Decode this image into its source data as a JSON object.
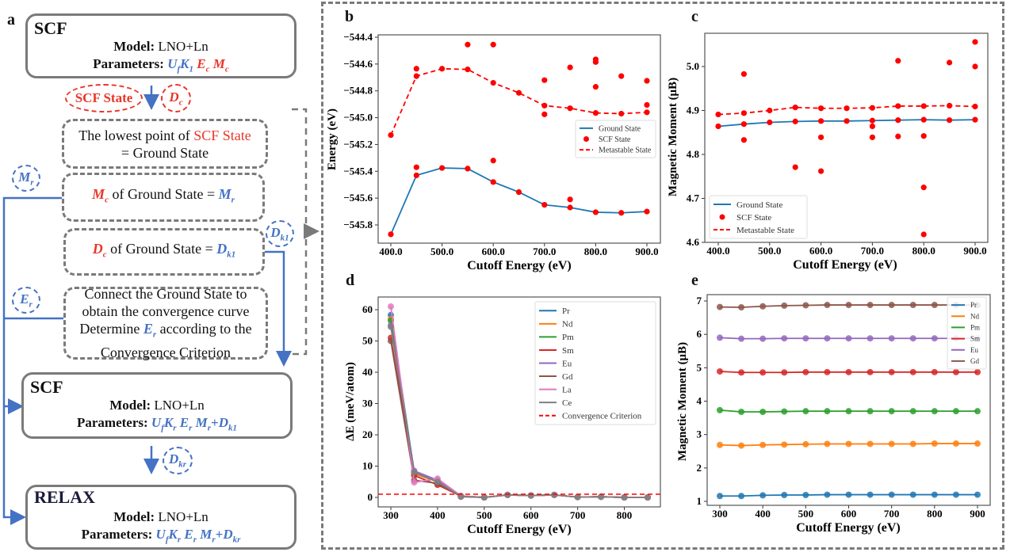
{
  "colors": {
    "blue": "#4472c4",
    "red": "#e8372a",
    "gray": "#7a7a7a"
  },
  "panel_labels": {
    "a": "a",
    "b": "b",
    "c": "c",
    "d": "d",
    "e": "e"
  },
  "flowchart": {
    "box1": {
      "title": "SCF",
      "model_label": "Model:",
      "model_value": " LNO+Ln",
      "params_label": "Parameters: ",
      "params": [
        {
          "t": "U",
          "s": "f",
          "c": "blue"
        },
        {
          "t": "K",
          "s": "1",
          "c": "blue"
        },
        {
          "t": " "
        },
        {
          "t": "E",
          "s": "c",
          "c": "red"
        },
        {
          "t": " "
        },
        {
          "t": "M",
          "s": "c",
          "c": "red"
        }
      ]
    },
    "scf_state_tag": "SCF State",
    "dc_tag": [
      {
        "t": "D",
        "s": "c",
        "c": "red"
      }
    ],
    "step1": [
      {
        "t": "The lowest point of "
      },
      {
        "t": "SCF State",
        "c": "red",
        "plain": true
      },
      {
        "br": true
      },
      {
        "t": "=  Ground State"
      }
    ],
    "step2": [
      {
        "t": "M",
        "s": "c",
        "c": "red"
      },
      {
        "t": " of Ground State = "
      },
      {
        "t": "M",
        "s": "r",
        "c": "blue"
      }
    ],
    "step3": [
      {
        "t": "D",
        "s": "c",
        "c": "red"
      },
      {
        "t": " of Ground State = "
      },
      {
        "t": "D",
        "s": "k1",
        "c": "blue"
      }
    ],
    "step4": [
      {
        "t": "Connect the Ground State to"
      },
      {
        "br": true
      },
      {
        "t": "obtain the convergence curve"
      },
      {
        "br": true
      },
      {
        "t": "Determine "
      },
      {
        "t": "E",
        "s": "r",
        "c": "blue"
      },
      {
        "t": " according to the"
      },
      {
        "br": true
      },
      {
        "t": "Convergence Criterion"
      }
    ],
    "mr_tag": [
      {
        "t": "M",
        "s": "r",
        "c": "blue"
      }
    ],
    "er_tag": [
      {
        "t": "E",
        "s": "r",
        "c": "blue"
      }
    ],
    "dk1_tag": [
      {
        "t": "D",
        "s": "k1",
        "c": "blue"
      }
    ],
    "dkr_tag": [
      {
        "t": "D",
        "s": "kr",
        "c": "blue"
      }
    ],
    "box2": {
      "title": "SCF",
      "model_label": "Model:",
      "model_value": " LNO+Ln",
      "params_label": "Parameters: ",
      "params": [
        {
          "t": "U",
          "s": "f",
          "c": "blue"
        },
        {
          "t": "K",
          "s": "r",
          "c": "blue"
        },
        {
          "t": " "
        },
        {
          "t": "E",
          "s": "r",
          "c": "blue"
        },
        {
          "t": " "
        },
        {
          "t": "M",
          "s": "r",
          "c": "blue"
        },
        {
          "t": "+",
          "c": "blue",
          "plain": true,
          "b": true
        },
        {
          "t": "D",
          "s": "k1",
          "c": "blue"
        }
      ]
    },
    "box3": {
      "title": "RELAX",
      "model_label": "Model:",
      "model_value": " LNO+Ln",
      "params_label": "Parameters: ",
      "params": [
        {
          "t": "U",
          "s": "f",
          "c": "blue"
        },
        {
          "t": "K",
          "s": "r",
          "c": "blue"
        },
        {
          "t": " "
        },
        {
          "t": "E",
          "s": "r",
          "c": "blue"
        },
        {
          "t": " "
        },
        {
          "t": "M",
          "s": "r",
          "c": "blue"
        },
        {
          "t": "+",
          "c": "blue",
          "plain": true,
          "b": true
        },
        {
          "t": "D",
          "s": "kr",
          "c": "blue"
        }
      ]
    }
  },
  "chart_data": [
    {
      "panel": "b",
      "type": "line",
      "xlabel": "Cutoff Energy (eV)",
      "ylabel": "Energy (eV)",
      "xlim": [
        380,
        920
      ],
      "ylim": [
        -545.93,
        -544.38
      ],
      "xticks": [
        400,
        500,
        600,
        700,
        800,
        900
      ],
      "yticks": [
        -545.8,
        -545.6,
        -545.4,
        -545.2,
        -545.0,
        -544.8,
        -544.6,
        -544.4
      ],
      "legend": "center-right",
      "series": [
        {
          "name": "Ground State",
          "style": "solid",
          "color": "#1f77b4",
          "x": [
            400,
            450,
            500,
            550,
            600,
            650,
            700,
            750,
            800,
            850,
            900
          ],
          "y": [
            -545.87,
            -545.43,
            -545.375,
            -545.38,
            -545.48,
            -545.555,
            -545.65,
            -545.67,
            -545.705,
            -545.71,
            -545.7
          ]
        },
        {
          "name": "SCF State",
          "style": "scatter",
          "color": "#ff0000",
          "points": [
            [
              400,
              -545.87
            ],
            [
              450,
              -545.43
            ],
            [
              450,
              -545.37
            ],
            [
              500,
              -545.375
            ],
            [
              550,
              -545.38
            ],
            [
              600,
              -545.48
            ],
            [
              600,
              -545.32
            ],
            [
              650,
              -545.555
            ],
            [
              700,
              -545.65
            ],
            [
              750,
              -545.67
            ],
            [
              750,
              -545.61
            ],
            [
              800,
              -545.705
            ],
            [
              850,
              -545.71
            ],
            [
              900,
              -545.7
            ],
            [
              400,
              -545.13
            ],
            [
              450,
              -544.69
            ],
            [
              450,
              -544.635
            ],
            [
              500,
              -544.635
            ],
            [
              550,
              -544.64
            ],
            [
              550,
              -544.455
            ],
            [
              600,
              -544.74
            ],
            [
              600,
              -544.455
            ],
            [
              650,
              -544.815
            ],
            [
              700,
              -544.91
            ],
            [
              700,
              -544.975
            ],
            [
              700,
              -544.72
            ],
            [
              750,
              -544.93
            ],
            [
              750,
              -544.625
            ],
            [
              800,
              -544.965
            ],
            [
              800,
              -544.77
            ],
            [
              800,
              -544.585
            ],
            [
              800,
              -544.565
            ],
            [
              850,
              -544.97
            ],
            [
              850,
              -544.69
            ],
            [
              900,
              -544.96
            ],
            [
              900,
              -544.905
            ],
            [
              900,
              -544.725
            ]
          ]
        },
        {
          "name": "Metastable State",
          "style": "dashed",
          "color": "#ff0000",
          "x": [
            400,
            450,
            500,
            550,
            600,
            650,
            700,
            750,
            800,
            850,
            900
          ],
          "y": [
            -545.13,
            -544.69,
            -544.635,
            -544.64,
            -544.74,
            -544.815,
            -544.91,
            -544.93,
            -544.965,
            -544.97,
            -544.96
          ]
        }
      ]
    },
    {
      "panel": "c",
      "type": "line",
      "xlabel": "Cutoff Energy (eV)",
      "ylabel": "Magnetic Moment (μB)",
      "xlim": [
        375,
        925
      ],
      "ylim": [
        4.6,
        5.07
      ],
      "xticks": [
        400,
        500,
        600,
        700,
        800,
        900
      ],
      "yticks": [
        4.6,
        4.7,
        4.8,
        4.9,
        5.0
      ],
      "legend": "lower-left",
      "series": [
        {
          "name": "Ground State",
          "style": "solid",
          "color": "#1f77b4",
          "x": [
            400,
            450,
            500,
            550,
            600,
            650,
            700,
            750,
            800,
            850,
            900
          ],
          "y": [
            4.864,
            4.869,
            4.873,
            4.875,
            4.876,
            4.876,
            4.877,
            4.878,
            4.879,
            4.878,
            4.879
          ]
        },
        {
          "name": "SCF State",
          "style": "scatter",
          "color": "#ff0000",
          "points": [
            [
              400,
              4.864
            ],
            [
              450,
              4.869
            ],
            [
              500,
              4.873
            ],
            [
              550,
              4.875
            ],
            [
              600,
              4.876
            ],
            [
              650,
              4.876
            ],
            [
              700,
              4.877
            ],
            [
              750,
              4.878
            ],
            [
              800,
              4.879
            ],
            [
              850,
              4.878
            ],
            [
              900,
              4.879
            ],
            [
              400,
              4.891
            ],
            [
              450,
              4.894
            ],
            [
              500,
              4.9
            ],
            [
              550,
              4.907
            ],
            [
              600,
              4.905
            ],
            [
              650,
              4.905
            ],
            [
              700,
              4.906
            ],
            [
              750,
              4.91
            ],
            [
              800,
              4.91
            ],
            [
              850,
              4.911
            ],
            [
              900,
              4.909
            ],
            [
              450,
              4.983
            ],
            [
              450,
              4.833
            ],
            [
              550,
              4.771
            ],
            [
              600,
              4.839
            ],
            [
              600,
              4.762
            ],
            [
              700,
              4.864
            ],
            [
              700,
              4.839
            ],
            [
              750,
              5.013
            ],
            [
              750,
              4.841
            ],
            [
              800,
              4.842
            ],
            [
              800,
              4.725
            ],
            [
              800,
              4.618
            ],
            [
              850,
              5.009
            ],
            [
              900,
              5.056
            ],
            [
              900,
              5.0
            ]
          ]
        },
        {
          "name": "Metastable State",
          "style": "dashed",
          "color": "#ff0000",
          "x": [
            400,
            450,
            500,
            550,
            600,
            650,
            700,
            750,
            800,
            850,
            900
          ],
          "y": [
            4.891,
            4.894,
            4.9,
            4.907,
            4.905,
            4.905,
            4.906,
            4.91,
            4.91,
            4.911,
            4.909
          ]
        }
      ]
    },
    {
      "panel": "d",
      "type": "line",
      "xlabel": "Cutoff Energy (eV)",
      "ylabel": "ΔE (meV/atom)",
      "xlim": [
        272,
        878
      ],
      "ylim": [
        -3,
        64
      ],
      "xticks": [
        300,
        400,
        500,
        600,
        700,
        800
      ],
      "yticks": [
        0,
        10,
        20,
        30,
        40,
        50,
        60
      ],
      "legend": "upper-right",
      "x": [
        300,
        350,
        400,
        450,
        500,
        550,
        600,
        650,
        700,
        750,
        800,
        850
      ],
      "series": [
        {
          "name": "Pr",
          "style": "solid-marker",
          "color": "#1f77b4",
          "y": [
            58.3,
            8.0,
            5.0,
            0.3,
            0,
            0.8,
            0.6,
            0.8,
            0.1,
            0.2,
            0,
            0
          ]
        },
        {
          "name": "Nd",
          "style": "solid-marker",
          "color": "#ff7f0e",
          "y": [
            57.0,
            7.5,
            5.0,
            0.5,
            0,
            0.8,
            0.6,
            0.8,
            0.1,
            0.2,
            0,
            0
          ]
        },
        {
          "name": "Pm",
          "style": "solid-marker",
          "color": "#2ca02c",
          "y": [
            56.5,
            8.0,
            5.0,
            0.4,
            0,
            0.8,
            0.6,
            0.8,
            0.1,
            0.2,
            0,
            0
          ]
        },
        {
          "name": "Sm",
          "style": "solid-marker",
          "color": "#d62728",
          "y": [
            51.0,
            7.0,
            4.0,
            0.4,
            0,
            0.8,
            0.6,
            0.8,
            0.1,
            0.2,
            0,
            0
          ]
        },
        {
          "name": "Eu",
          "style": "solid-marker",
          "color": "#9467bd",
          "y": [
            55.0,
            8.5,
            5.5,
            0.2,
            0,
            0.8,
            0.6,
            0.8,
            0.1,
            0.2,
            0,
            0
          ]
        },
        {
          "name": "Gd",
          "style": "solid-marker",
          "color": "#8c564b",
          "y": [
            50.0,
            5.5,
            4.5,
            0.3,
            0,
            0.8,
            0.6,
            0.8,
            0.1,
            0.2,
            0,
            0
          ]
        },
        {
          "name": "La",
          "style": "solid-marker",
          "color": "#e377c2",
          "y": [
            61.0,
            4.8,
            6.0,
            0.5,
            0,
            0.8,
            0.6,
            0.8,
            0.1,
            0.2,
            0,
            0
          ]
        },
        {
          "name": "Ce",
          "style": "solid-marker",
          "color": "#7f7f7f",
          "y": [
            54.5,
            8.0,
            5.0,
            0.3,
            0,
            0.8,
            0.6,
            0.8,
            0.1,
            0.2,
            0,
            0
          ]
        },
        {
          "name": "Convergence Criterion",
          "style": "hline-dashed",
          "color": "#ff0000",
          "value": 1
        }
      ]
    },
    {
      "panel": "e",
      "type": "line",
      "xlabel": "Cutoff Energy (eV)",
      "ylabel": "Magnetic Moment (μB)",
      "xlim": [
        270,
        930
      ],
      "ylim": [
        0.93,
        7.13
      ],
      "xticks": [
        300,
        400,
        500,
        600,
        700,
        800,
        900
      ],
      "yticks": [
        1,
        2,
        3,
        4,
        5,
        6,
        7
      ],
      "legend": "upper-right",
      "x": [
        300,
        350,
        400,
        450,
        500,
        550,
        600,
        650,
        700,
        750,
        800,
        850,
        900
      ],
      "series": [
        {
          "name": "Pr",
          "style": "solid-marker",
          "color": "#1f77b4",
          "y": [
            1.16,
            1.16,
            1.18,
            1.19,
            1.19,
            1.2,
            1.2,
            1.2,
            1.2,
            1.2,
            1.2,
            1.2,
            1.2
          ]
        },
        {
          "name": "Nd",
          "style": "solid-marker",
          "color": "#ff7f0e",
          "y": [
            2.69,
            2.67,
            2.69,
            2.7,
            2.71,
            2.72,
            2.72,
            2.72,
            2.72,
            2.72,
            2.73,
            2.73,
            2.73
          ]
        },
        {
          "name": "Pm",
          "style": "solid-marker",
          "color": "#2ca02c",
          "y": [
            3.73,
            3.68,
            3.68,
            3.69,
            3.7,
            3.7,
            3.7,
            3.7,
            3.7,
            3.7,
            3.7,
            3.7,
            3.7
          ]
        },
        {
          "name": "Sm",
          "style": "solid-marker",
          "color": "#d62728",
          "y": [
            4.89,
            4.86,
            4.86,
            4.86,
            4.87,
            4.87,
            4.87,
            4.87,
            4.87,
            4.87,
            4.87,
            4.87,
            4.87
          ]
        },
        {
          "name": "Eu",
          "style": "solid-marker",
          "color": "#9467bd",
          "y": [
            5.9,
            5.87,
            5.87,
            5.88,
            5.88,
            5.88,
            5.88,
            5.88,
            5.88,
            5.88,
            5.88,
            5.88,
            5.88
          ]
        },
        {
          "name": "Gd",
          "style": "solid-marker",
          "color": "#8c564b",
          "y": [
            6.82,
            6.81,
            6.84,
            6.86,
            6.87,
            6.88,
            6.88,
            6.88,
            6.88,
            6.88,
            6.88,
            6.88,
            6.88
          ]
        }
      ]
    }
  ]
}
